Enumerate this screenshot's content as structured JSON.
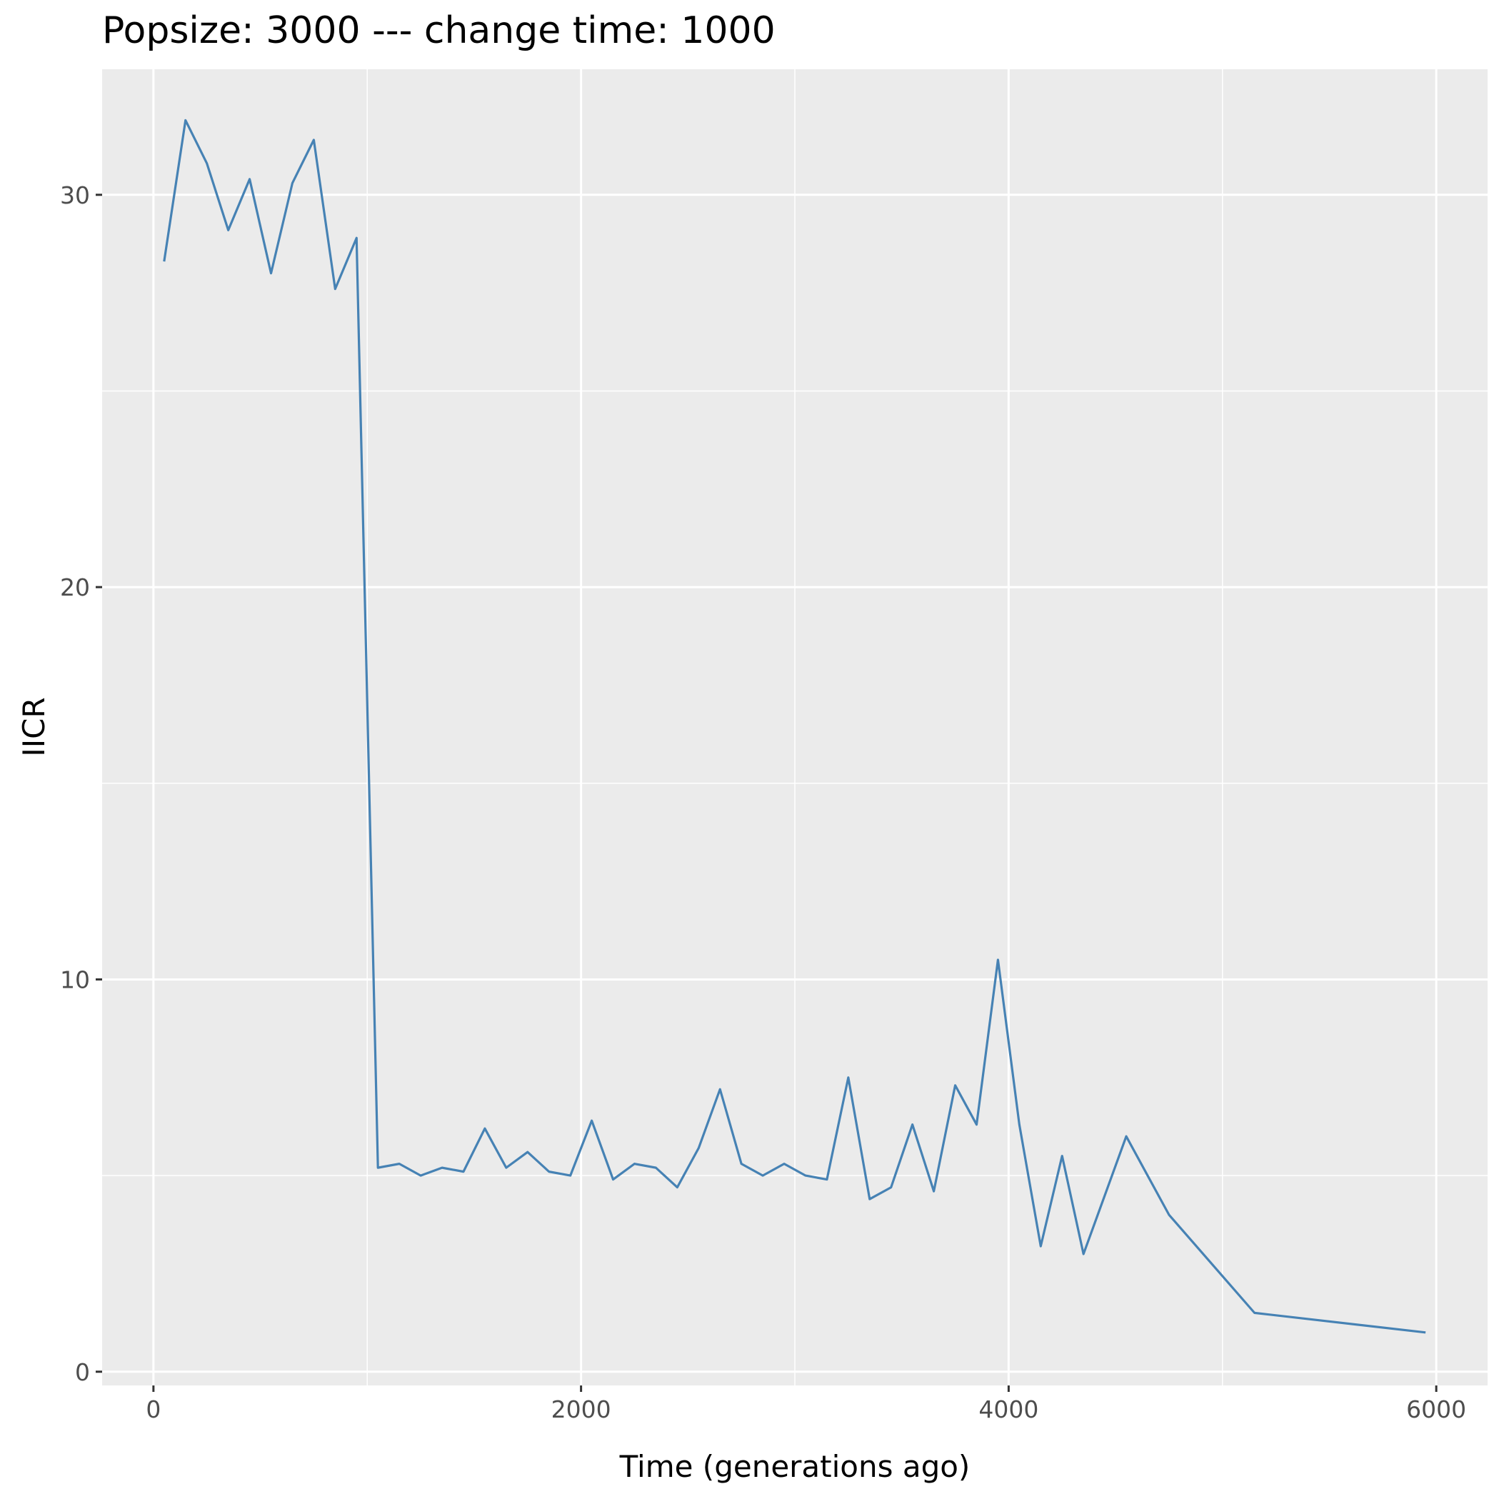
{
  "chart_data": {
    "type": "line",
    "title": "Popsize:  3000  --- change time:  1000",
    "xlabel": "Time (generations ago)",
    "ylabel": "IICR",
    "xlim": [
      -240,
      6240
    ],
    "ylim": [
      -0.35,
      33.2
    ],
    "x_ticks": [
      0,
      2000,
      4000,
      6000
    ],
    "x_tick_labels": [
      "0",
      "2000",
      "4000",
      "6000"
    ],
    "x_minor_ticks": [
      1000,
      3000,
      5000
    ],
    "y_ticks": [
      0,
      10,
      20,
      30
    ],
    "y_tick_labels": [
      "0",
      "10",
      "20",
      "30"
    ],
    "y_minor_ticks": [
      5,
      15,
      25
    ],
    "grid": true,
    "legend": "none",
    "colors": {
      "line": "#4682B4",
      "panel": "#EBEBEB",
      "grid": "#FFFFFF",
      "tick": "#333333"
    },
    "series": [
      {
        "x": [
          50,
          150,
          250,
          350,
          450,
          550,
          650,
          750,
          850,
          950,
          1050,
          1150,
          1250,
          1350,
          1450,
          1550,
          1650,
          1750,
          1850,
          1950,
          2050,
          2150,
          2250,
          2350,
          2450,
          2550,
          2650,
          2750,
          2850,
          2950,
          3050,
          3150,
          3250,
          3350,
          3450,
          3550,
          3650,
          3750,
          3850,
          3950,
          4050,
          4150,
          4250,
          4350,
          4550,
          4750,
          5150,
          5950
        ],
        "values": [
          28.3,
          31.9,
          30.8,
          29.1,
          30.4,
          28.0,
          30.3,
          31.4,
          27.6,
          28.9,
          5.2,
          5.3,
          5.0,
          5.2,
          5.1,
          6.2,
          5.2,
          5.6,
          5.1,
          5.0,
          6.4,
          4.9,
          5.3,
          5.2,
          4.7,
          5.7,
          7.2,
          5.3,
          5.0,
          5.3,
          5.0,
          4.9,
          7.5,
          4.4,
          4.7,
          6.3,
          4.6,
          7.3,
          6.3,
          10.5,
          6.3,
          3.2,
          5.5,
          3.0,
          6.0,
          4.0,
          1.5,
          1.0
        ]
      }
    ]
  }
}
